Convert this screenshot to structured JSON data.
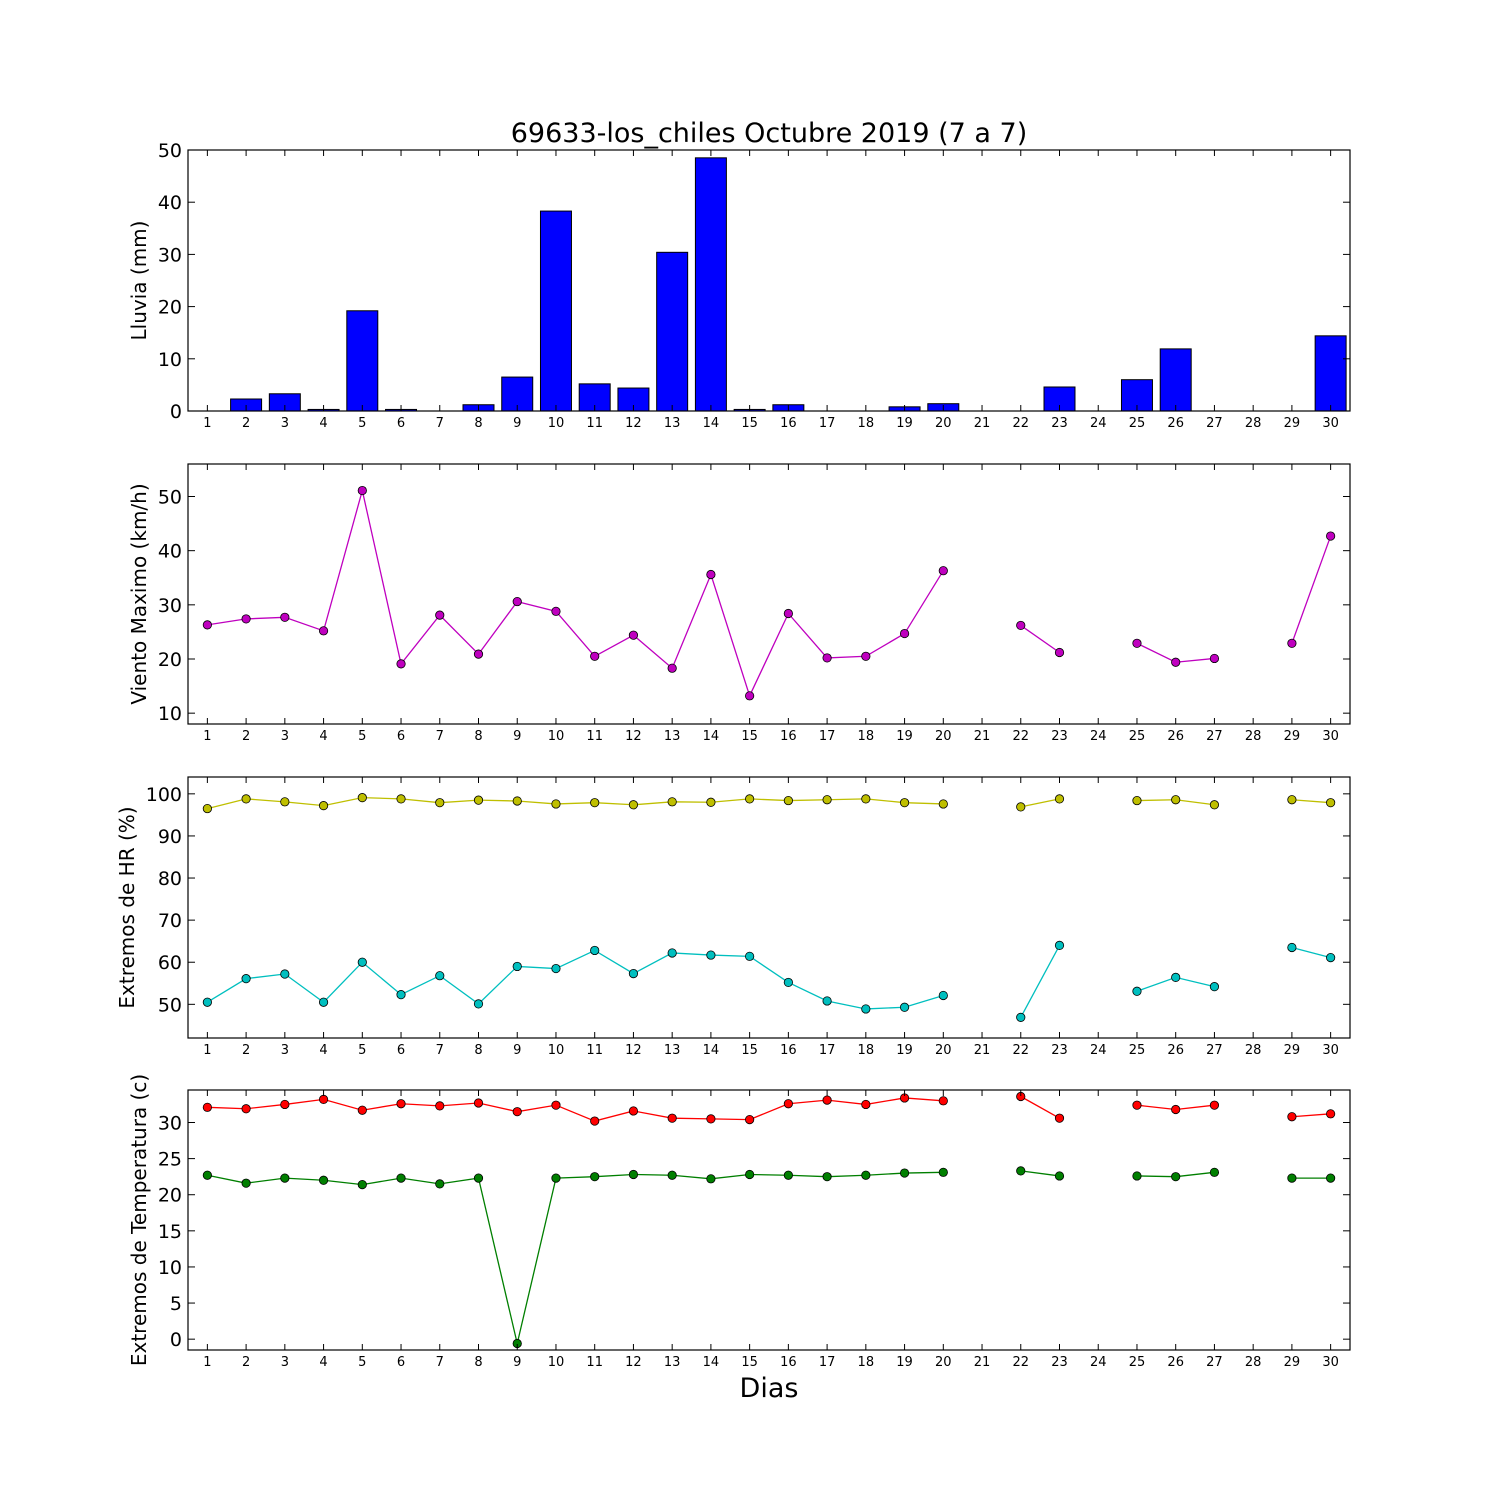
{
  "figure": {
    "title": "69633-los_chiles Octubre 2019  (7 a 7)",
    "xlabel": "Dias"
  },
  "chart_data": [
    {
      "type": "bar",
      "ylabel": "Lluvia (mm)",
      "ylim": [
        0,
        50
      ],
      "yticks": [
        0,
        10,
        20,
        30,
        40,
        50
      ],
      "categories": [
        "1",
        "2",
        "3",
        "4",
        "5",
        "6",
        "7",
        "8",
        "9",
        "10",
        "11",
        "12",
        "13",
        "14",
        "15",
        "16",
        "17",
        "18",
        "19",
        "20",
        "21",
        "22",
        "23",
        "24",
        "25",
        "26",
        "27",
        "28",
        "29",
        "30"
      ],
      "values": [
        0,
        2.3,
        3.3,
        0.3,
        19.2,
        0.3,
        0,
        1.2,
        6.5,
        38.3,
        5.2,
        4.4,
        30.4,
        48.5,
        0.3,
        1.2,
        0,
        0,
        0.8,
        1.4,
        0,
        0,
        4.6,
        0,
        6.0,
        11.9,
        0,
        0,
        0,
        14.4
      ],
      "colors": {
        "bar": "#0000ff"
      }
    },
    {
      "type": "line",
      "ylabel": "Viento Maximo (km/h)",
      "ylim": [
        8,
        56
      ],
      "yticks": [
        10,
        20,
        30,
        40,
        50
      ],
      "x": [
        1,
        2,
        3,
        4,
        5,
        6,
        7,
        8,
        9,
        10,
        11,
        12,
        13,
        14,
        15,
        16,
        17,
        18,
        19,
        20,
        21,
        22,
        23,
        24,
        25,
        26,
        27,
        28,
        29,
        30
      ],
      "series": [
        {
          "values": [
            26.3,
            27.4,
            27.7,
            25.2,
            51.1,
            19.1,
            28.1,
            20.9,
            30.6,
            28.8,
            20.5,
            24.4,
            18.3,
            35.6,
            13.2,
            28.4,
            20.2,
            20.5,
            24.7,
            36.3,
            null,
            26.2,
            21.2,
            null,
            22.9,
            19.4,
            20.1,
            null,
            22.9,
            42.7
          ],
          "color": "#bf00bf"
        }
      ]
    },
    {
      "type": "line",
      "ylabel": "Extremos de HR (%)",
      "ylim": [
        42,
        104
      ],
      "yticks": [
        50,
        60,
        70,
        80,
        90,
        100
      ],
      "x": [
        1,
        2,
        3,
        4,
        5,
        6,
        7,
        8,
        9,
        10,
        11,
        12,
        13,
        14,
        15,
        16,
        17,
        18,
        19,
        20,
        21,
        22,
        23,
        24,
        25,
        26,
        27,
        28,
        29,
        30
      ],
      "series": [
        {
          "values": [
            96.5,
            98.8,
            98.1,
            97.2,
            99.1,
            98.8,
            97.9,
            98.5,
            98.3,
            97.6,
            97.9,
            97.4,
            98.1,
            98.0,
            98.8,
            98.4,
            98.6,
            98.8,
            97.9,
            97.6,
            null,
            96.9,
            98.8,
            null,
            98.4,
            98.6,
            97.4,
            null,
            98.6,
            97.9
          ],
          "color": "#bfbf00"
        },
        {
          "values": [
            50.5,
            56.1,
            57.2,
            50.5,
            60.0,
            52.3,
            56.8,
            50.1,
            59.0,
            58.5,
            62.8,
            57.3,
            62.2,
            61.7,
            61.4,
            55.2,
            50.8,
            48.9,
            49.3,
            52.1,
            null,
            46.9,
            64.0,
            null,
            53.1,
            56.4,
            54.2,
            null,
            63.5,
            61.1
          ],
          "color": "#00bfbf"
        }
      ]
    },
    {
      "type": "line",
      "ylabel": "Extremos de Temperatura (c)",
      "ylim": [
        -1.5,
        34.5
      ],
      "yticks": [
        0,
        5,
        10,
        15,
        20,
        25,
        30
      ],
      "x": [
        1,
        2,
        3,
        4,
        5,
        6,
        7,
        8,
        9,
        10,
        11,
        12,
        13,
        14,
        15,
        16,
        17,
        18,
        19,
        20,
        21,
        22,
        23,
        24,
        25,
        26,
        27,
        28,
        29,
        30
      ],
      "series": [
        {
          "values": [
            32.1,
            31.9,
            32.5,
            33.2,
            31.7,
            32.6,
            32.3,
            32.7,
            31.5,
            32.4,
            30.2,
            31.6,
            30.6,
            30.5,
            30.4,
            32.6,
            33.1,
            32.5,
            33.4,
            33.0,
            null,
            33.6,
            30.6,
            null,
            32.4,
            31.8,
            32.4,
            null,
            30.8,
            31.2
          ],
          "color": "#ff0000"
        },
        {
          "values": [
            22.7,
            21.6,
            22.3,
            22.0,
            21.4,
            22.3,
            21.5,
            22.3,
            -0.6,
            22.3,
            22.5,
            22.8,
            22.7,
            22.2,
            22.8,
            22.7,
            22.5,
            22.7,
            23.0,
            23.1,
            null,
            23.3,
            22.6,
            null,
            22.6,
            22.5,
            23.1,
            null,
            22.3,
            22.3
          ],
          "color": "#007f00"
        }
      ]
    }
  ]
}
